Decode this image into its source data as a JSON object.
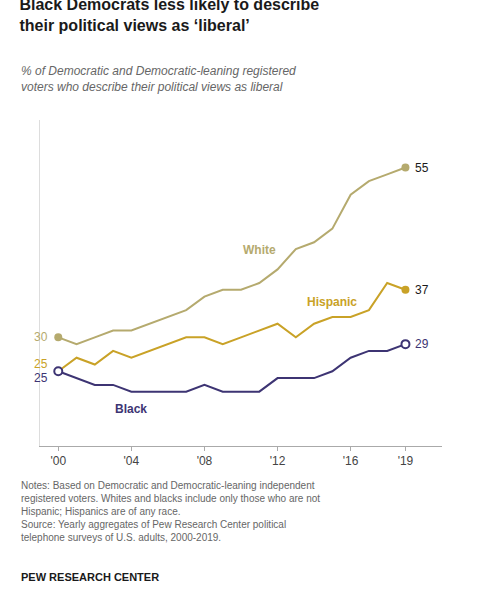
{
  "chart_data": {
    "type": "line",
    "title": "Black Democrats less likely to describe\ntheir political views as ‘liberal’",
    "subtitle": "% of Democratic and Democratic-leaning registered\nvoters who describe their political views as liberal",
    "notes": [
      "Notes: Based on Democratic and Democratic-leaning independent",
      "registered voters. Whites and blacks include only those who are not",
      "Hispanic; Hispanics are of any race.",
      "Source: Yearly aggregates of Pew Research Center political",
      "telephone surveys of U.S. adults, 2000-2019."
    ],
    "source": "PEW RESEARCH CENTER",
    "x": [
      2000,
      2001,
      2002,
      2003,
      2004,
      2005,
      2006,
      2007,
      2008,
      2009,
      2010,
      2011,
      2012,
      2013,
      2014,
      2015,
      2016,
      2017,
      2018,
      2019
    ],
    "series": [
      {
        "name": "White",
        "color": "#b5aa6e",
        "marker": "circle",
        "values": [
          30,
          29,
          30,
          31,
          31,
          32,
          33,
          34,
          36,
          37,
          37,
          38,
          40,
          43,
          44,
          46,
          51,
          53,
          54,
          55
        ]
      },
      {
        "name": "Hispanic",
        "color": "#c9a227",
        "marker": "circle",
        "values": [
          25,
          27,
          26,
          28,
          27,
          28,
          29,
          30,
          30,
          29,
          30,
          31,
          32,
          30,
          32,
          33,
          33,
          34,
          38,
          37
        ]
      },
      {
        "name": "Black",
        "color": "#3d3473",
        "marker": "circle-open",
        "values": [
          25,
          24,
          23,
          23,
          22,
          22,
          22,
          22,
          23,
          22,
          22,
          22,
          24,
          24,
          24,
          25,
          27,
          28,
          28,
          29
        ]
      }
    ],
    "annotations": [
      {
        "text": "55",
        "x": 2019,
        "y": 55,
        "color": "#1a1a1a"
      },
      {
        "text": "37",
        "x": 2019,
        "y": 37,
        "color": "#1a1a1a"
      },
      {
        "text": "29",
        "x": 2019,
        "y": 29,
        "color": "#3d3473"
      },
      {
        "text": "30",
        "x": 2000,
        "y": 30,
        "color": "#b5aa6e"
      },
      {
        "text": "25",
        "x": 2000,
        "y": 25,
        "color": "#c9a227"
      },
      {
        "text": "25",
        "x": 2000,
        "y": 25,
        "color": "#3d3473"
      }
    ],
    "xlim": [
      1999.0,
      2021.0
    ],
    "xticks": [
      {
        "value": 2000,
        "label": "'00"
      },
      {
        "value": 2004,
        "label": "'04"
      },
      {
        "value": 2008,
        "label": "'08"
      },
      {
        "value": 2012,
        "label": "'12"
      },
      {
        "value": 2016,
        "label": "'16"
      },
      {
        "value": 2019,
        "label": "'19"
      }
    ],
    "ylim": [
      14,
      62
    ],
    "tick_labels": "x",
    "grid": false
  }
}
